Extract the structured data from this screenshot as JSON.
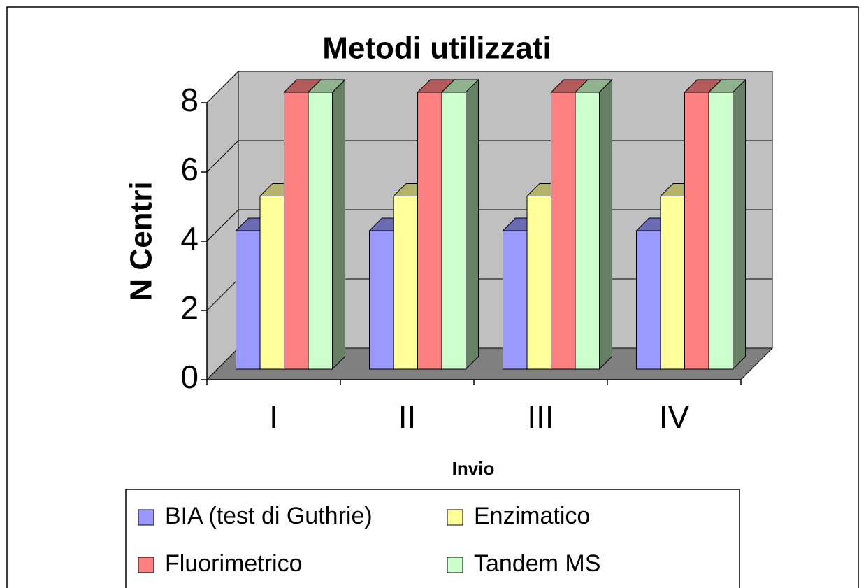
{
  "chart_data": {
    "type": "bar3d",
    "title": "Metodi utilizzati",
    "x_label": "Invio",
    "y_label": "N Centri",
    "categories": [
      "I",
      "II",
      "III",
      "IV"
    ],
    "series": [
      {
        "name": "BIA (test di Guthrie)",
        "color": "#9999ff",
        "values": [
          4,
          4,
          4,
          4
        ]
      },
      {
        "name": "Enzimatico",
        "color": "#ffff99",
        "values": [
          5,
          5,
          5,
          5
        ]
      },
      {
        "name": "Fluorimetrico",
        "color": "#ff8080",
        "values": [
          8,
          8,
          8,
          8
        ]
      },
      {
        "name": "Tandem MS",
        "color": "#ccffcc",
        "values": [
          8,
          8,
          8,
          8
        ]
      }
    ],
    "ylim": [
      0,
      8
    ],
    "yticks": [
      0,
      2,
      4,
      6,
      8
    ],
    "grid": true,
    "legend": "bottom"
  }
}
